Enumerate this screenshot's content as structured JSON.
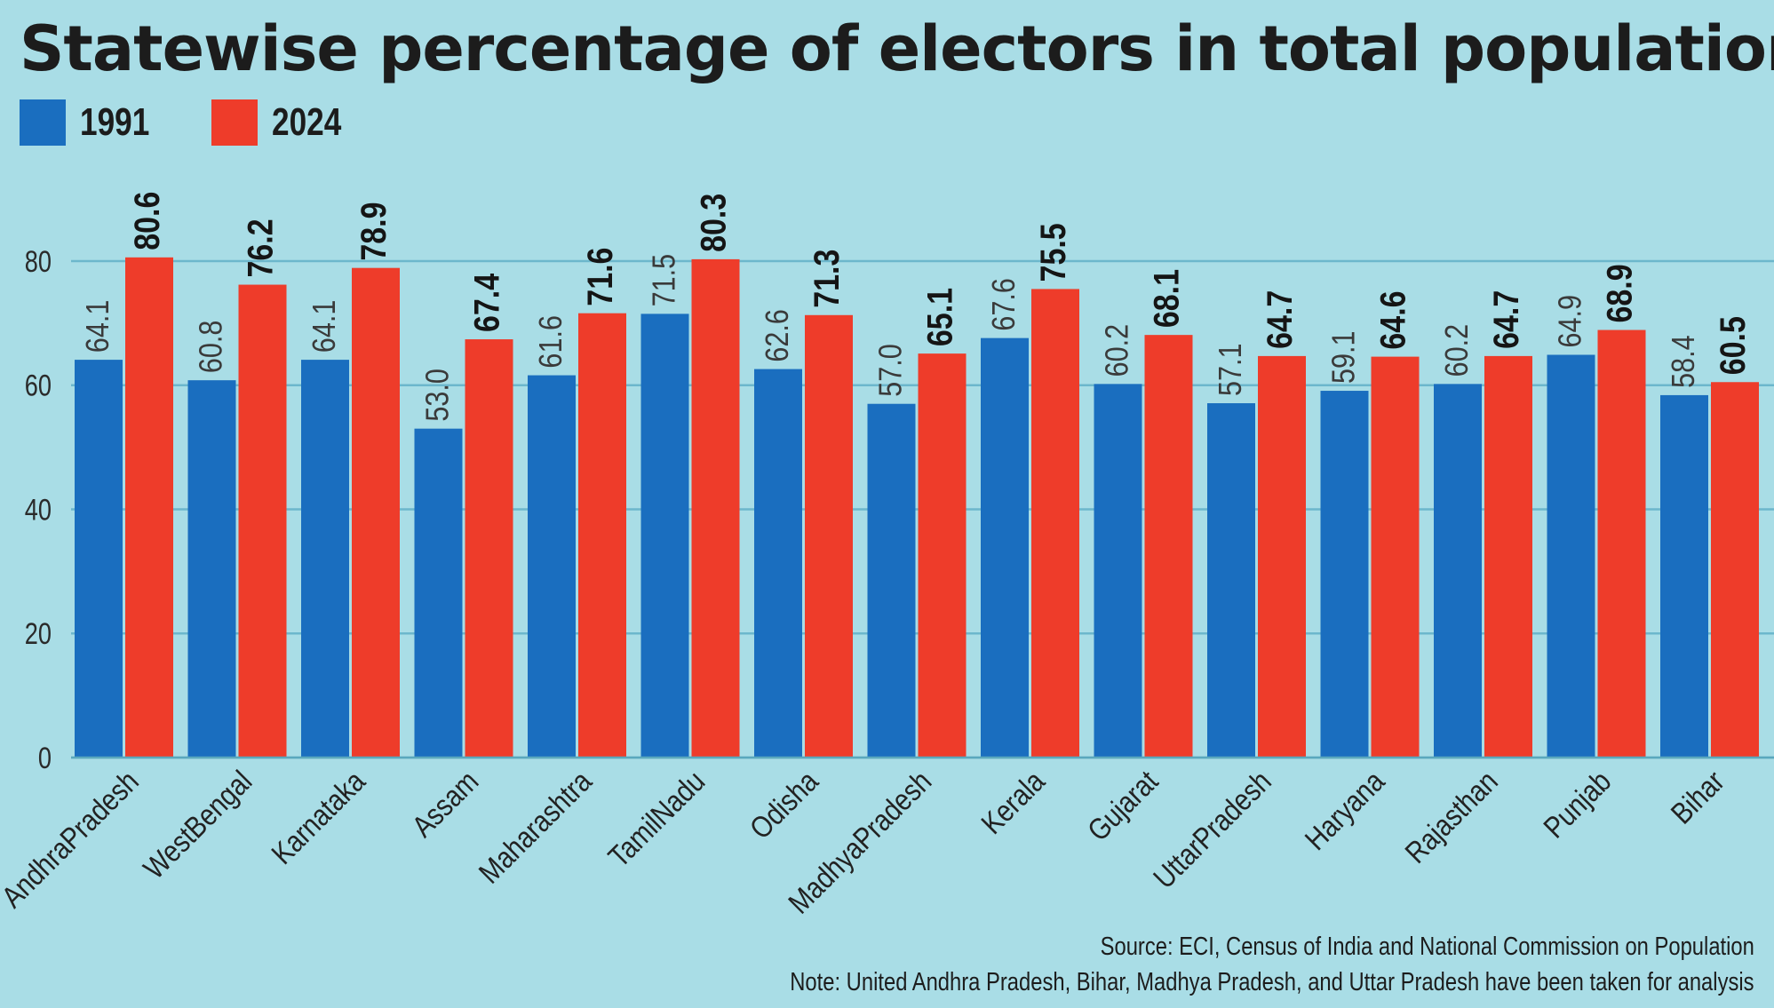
{
  "title": "Statewise percentage of electors in total population",
  "legend": {
    "items": [
      {
        "label": "1991",
        "color": "#1a6ebf"
      },
      {
        "label": "2024",
        "color": "#ee3c2a"
      }
    ]
  },
  "chart_data": {
    "type": "bar",
    "title": "Statewise percentage of electors in total population",
    "xlabel": "",
    "ylabel": "",
    "ylim": [
      0,
      80
    ],
    "yticks": [
      0,
      20,
      40,
      60,
      80
    ],
    "grid": true,
    "legend_position": "top-left",
    "categories": [
      "AndhraPradesh",
      "WestBengal",
      "Karnataka",
      "Assam",
      "Maharashtra",
      "TamilNadu",
      "Odisha",
      "MadhyaPradesh",
      "Kerala",
      "Gujarat",
      "UttarPradesh",
      "Haryana",
      "Rajasthan",
      "Punjab",
      "Bihar"
    ],
    "series": [
      {
        "name": "1991",
        "color": "#1a6ebf",
        "values": [
          64.1,
          60.8,
          64.1,
          53.0,
          61.6,
          71.5,
          62.6,
          57.0,
          67.6,
          60.2,
          57.1,
          59.1,
          60.2,
          64.9,
          58.4
        ],
        "labels": [
          "64.1",
          "60.8",
          "64.1",
          "53.0",
          "61.6",
          "71.5",
          "62.6",
          "57.0",
          "67.6",
          "60.2",
          "57.1",
          "59.1",
          "60.2",
          "64.9",
          "58.4"
        ]
      },
      {
        "name": "2024",
        "color": "#ee3c2a",
        "values": [
          80.6,
          76.2,
          78.9,
          67.4,
          71.6,
          80.3,
          71.3,
          65.1,
          75.5,
          68.1,
          64.7,
          64.6,
          64.7,
          68.9,
          60.5
        ],
        "labels": [
          "80.6",
          "76.2",
          "78.9",
          "67.4",
          "71.6",
          "80.3",
          "71.3",
          "65.1",
          "75.5",
          "68.1",
          "64.7",
          "64.6",
          "64.7",
          "68.9",
          "60.5"
        ]
      }
    ]
  },
  "footer": {
    "source": "Source: ECI, Census of India and National Commission on Population",
    "note": "Note: United Andhra Pradesh, Bihar, Madhya Pradesh, and Uttar Pradesh have been taken for analysis"
  }
}
